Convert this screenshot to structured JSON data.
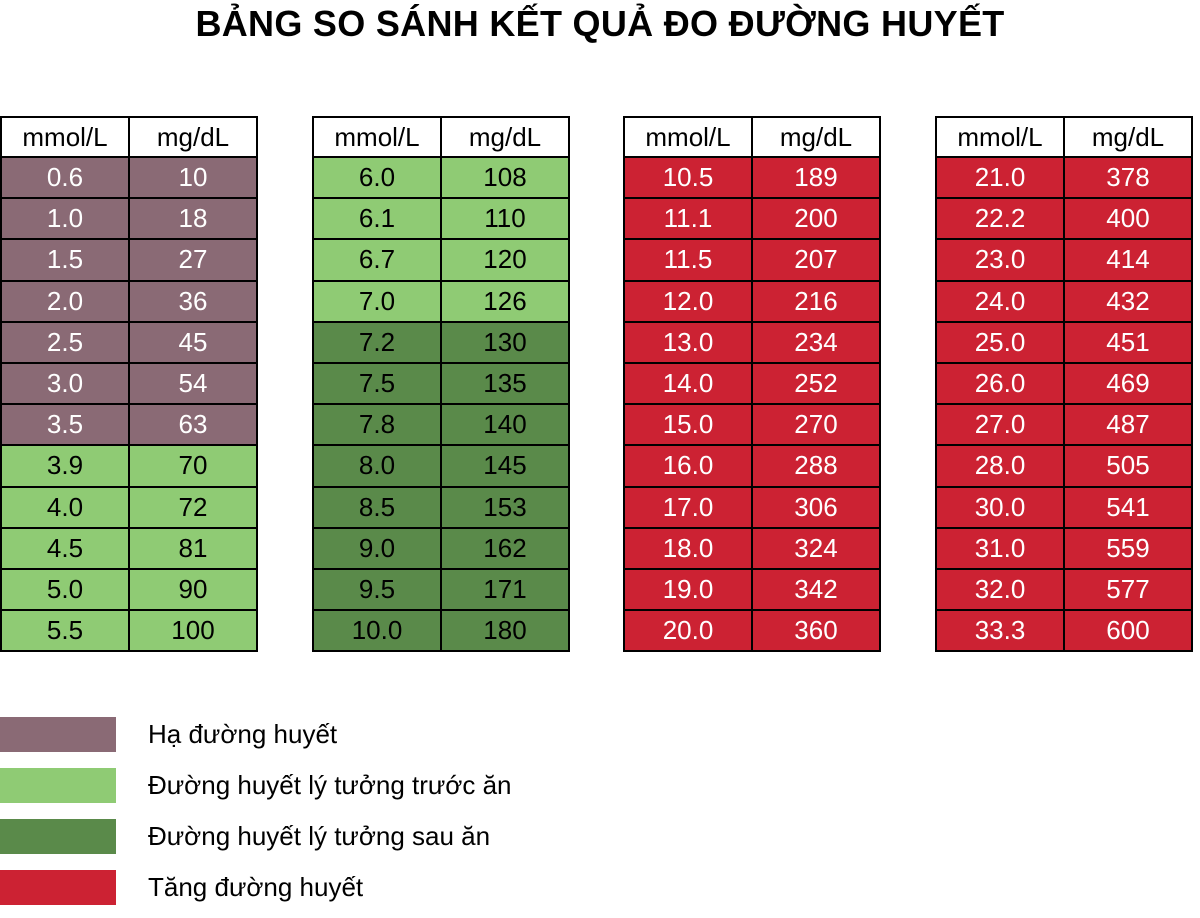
{
  "title": "BẢNG SO SÁNH KẾT QUẢ ĐO ĐƯỜNG HUYẾT",
  "headers": {
    "mmol": "mmol/L",
    "mgdl": "mg/dL"
  },
  "colors": {
    "low": "#8a6a75",
    "pre_meal": "#8fcb74",
    "post_meal": "#5a8a4a",
    "high": "#cc2233"
  },
  "tables": [
    {
      "rows": [
        {
          "mmol": "0.6",
          "mgdl": "10",
          "cat": "low"
        },
        {
          "mmol": "1.0",
          "mgdl": "18",
          "cat": "low"
        },
        {
          "mmol": "1.5",
          "mgdl": "27",
          "cat": "low"
        },
        {
          "mmol": "2.0",
          "mgdl": "36",
          "cat": "low"
        },
        {
          "mmol": "2.5",
          "mgdl": "45",
          "cat": "low"
        },
        {
          "mmol": "3.0",
          "mgdl": "54",
          "cat": "low"
        },
        {
          "mmol": "3.5",
          "mgdl": "63",
          "cat": "low"
        },
        {
          "mmol": "3.9",
          "mgdl": "70",
          "cat": "pre"
        },
        {
          "mmol": "4.0",
          "mgdl": "72",
          "cat": "pre"
        },
        {
          "mmol": "4.5",
          "mgdl": "81",
          "cat": "pre"
        },
        {
          "mmol": "5.0",
          "mgdl": "90",
          "cat": "pre"
        },
        {
          "mmol": "5.5",
          "mgdl": "100",
          "cat": "pre"
        }
      ]
    },
    {
      "rows": [
        {
          "mmol": "6.0",
          "mgdl": "108",
          "cat": "pre"
        },
        {
          "mmol": "6.1",
          "mgdl": "110",
          "cat": "pre"
        },
        {
          "mmol": "6.7",
          "mgdl": "120",
          "cat": "pre"
        },
        {
          "mmol": "7.0",
          "mgdl": "126",
          "cat": "pre"
        },
        {
          "mmol": "7.2",
          "mgdl": "130",
          "cat": "post"
        },
        {
          "mmol": "7.5",
          "mgdl": "135",
          "cat": "post"
        },
        {
          "mmol": "7.8",
          "mgdl": "140",
          "cat": "post"
        },
        {
          "mmol": "8.0",
          "mgdl": "145",
          "cat": "post"
        },
        {
          "mmol": "8.5",
          "mgdl": "153",
          "cat": "post"
        },
        {
          "mmol": "9.0",
          "mgdl": "162",
          "cat": "post"
        },
        {
          "mmol": "9.5",
          "mgdl": "171",
          "cat": "post"
        },
        {
          "mmol": "10.0",
          "mgdl": "180",
          "cat": "post"
        }
      ]
    },
    {
      "rows": [
        {
          "mmol": "10.5",
          "mgdl": "189",
          "cat": "hi"
        },
        {
          "mmol": "11.1",
          "mgdl": "200",
          "cat": "hi"
        },
        {
          "mmol": "11.5",
          "mgdl": "207",
          "cat": "hi"
        },
        {
          "mmol": "12.0",
          "mgdl": "216",
          "cat": "hi"
        },
        {
          "mmol": "13.0",
          "mgdl": "234",
          "cat": "hi"
        },
        {
          "mmol": "14.0",
          "mgdl": "252",
          "cat": "hi"
        },
        {
          "mmol": "15.0",
          "mgdl": "270",
          "cat": "hi"
        },
        {
          "mmol": "16.0",
          "mgdl": "288",
          "cat": "hi"
        },
        {
          "mmol": "17.0",
          "mgdl": "306",
          "cat": "hi"
        },
        {
          "mmol": "18.0",
          "mgdl": "324",
          "cat": "hi"
        },
        {
          "mmol": "19.0",
          "mgdl": "342",
          "cat": "hi"
        },
        {
          "mmol": "20.0",
          "mgdl": "360",
          "cat": "hi"
        }
      ]
    },
    {
      "rows": [
        {
          "mmol": "21.0",
          "mgdl": "378",
          "cat": "hi"
        },
        {
          "mmol": "22.2",
          "mgdl": "400",
          "cat": "hi"
        },
        {
          "mmol": "23.0",
          "mgdl": "414",
          "cat": "hi"
        },
        {
          "mmol": "24.0",
          "mgdl": "432",
          "cat": "hi"
        },
        {
          "mmol": "25.0",
          "mgdl": "451",
          "cat": "hi"
        },
        {
          "mmol": "26.0",
          "mgdl": "469",
          "cat": "hi"
        },
        {
          "mmol": "27.0",
          "mgdl": "487",
          "cat": "hi"
        },
        {
          "mmol": "28.0",
          "mgdl": "505",
          "cat": "hi"
        },
        {
          "mmol": "30.0",
          "mgdl": "541",
          "cat": "hi"
        },
        {
          "mmol": "31.0",
          "mgdl": "559",
          "cat": "hi"
        },
        {
          "mmol": "32.0",
          "mgdl": "577",
          "cat": "hi"
        },
        {
          "mmol": "33.3",
          "mgdl": "600",
          "cat": "hi"
        }
      ]
    }
  ],
  "legend": [
    {
      "label": "Hạ đường huyết",
      "cat": "low"
    },
    {
      "label": "Đường huyết lý tưởng trước ăn",
      "cat": "pre"
    },
    {
      "label": "Đường huyết lý tưởng sau ăn",
      "cat": "post"
    },
    {
      "label": "Tăng đường huyết",
      "cat": "hi"
    }
  ]
}
